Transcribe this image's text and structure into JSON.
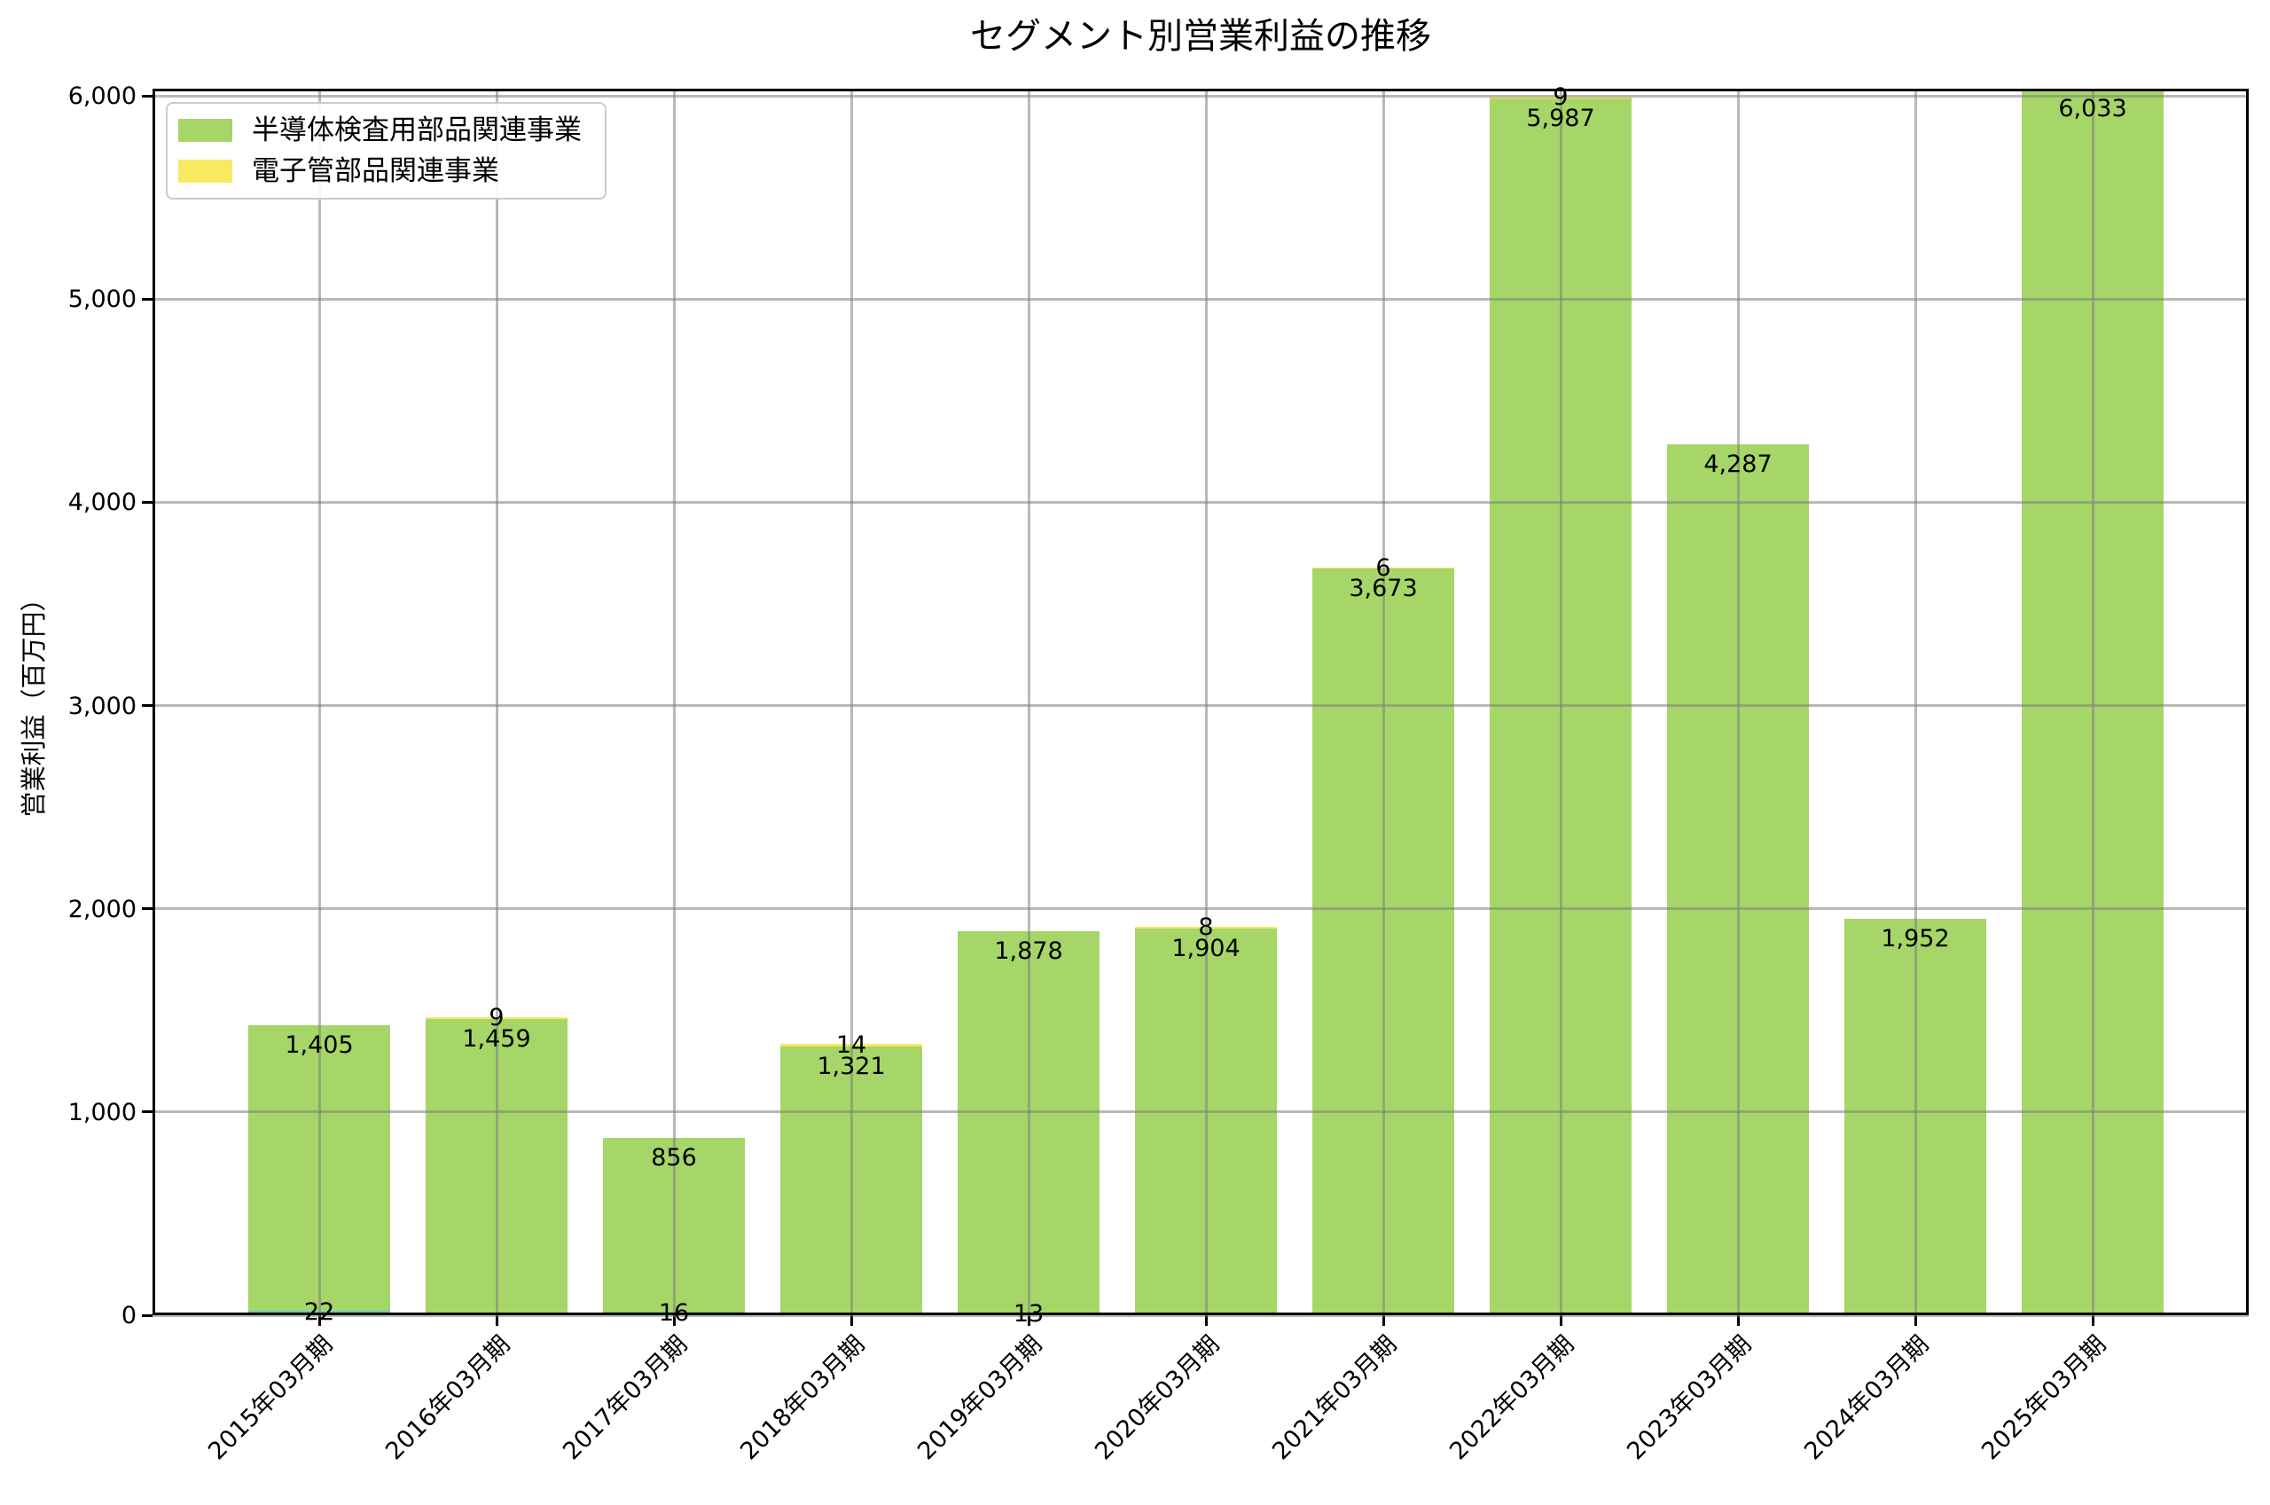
{
  "title": "セグメント別営業利益の推移",
  "y_axis": {
    "label": "営業利益（百万円）",
    "tick_labels": [
      "0",
      "1,000",
      "2,000",
      "3,000",
      "4,000",
      "5,000",
      "6,000"
    ],
    "tick_values": [
      0,
      1000,
      2000,
      3000,
      4000,
      5000,
      6000
    ]
  },
  "chart_data": {
    "type": "bar",
    "stacked": true,
    "title": "セグメント別営業利益の推移",
    "xlabel": "",
    "ylabel": "営業利益（百万円）",
    "ylim": [
      0,
      6035
    ],
    "grid": true,
    "legend_position": "upper-left",
    "categories": [
      "2015年03月期",
      "2016年03月期",
      "2017年03月期",
      "2018年03月期",
      "2019年03月期",
      "2020年03月期",
      "2021年03月期",
      "2022年03月期",
      "2023年03月期",
      "2024年03月期",
      "2025年03月期"
    ],
    "series": [
      {
        "name": "",
        "in_legend": false,
        "color": "#6dc8c1",
        "values": [
          22,
          0,
          16,
          0,
          13,
          0,
          0,
          0,
          0,
          0,
          0
        ]
      },
      {
        "name": "半導体検査用部品関連事業",
        "in_legend": true,
        "color": "#a6d667",
        "values": [
          1405,
          1459,
          856,
          1321,
          1878,
          1904,
          3673,
          5987,
          4287,
          1952,
          6033
        ]
      },
      {
        "name": "電子管部品関連事業",
        "in_legend": true,
        "color": "#f9e961",
        "values": [
          0,
          9,
          0,
          14,
          0,
          8,
          6,
          9,
          0,
          0,
          0
        ]
      }
    ]
  }
}
